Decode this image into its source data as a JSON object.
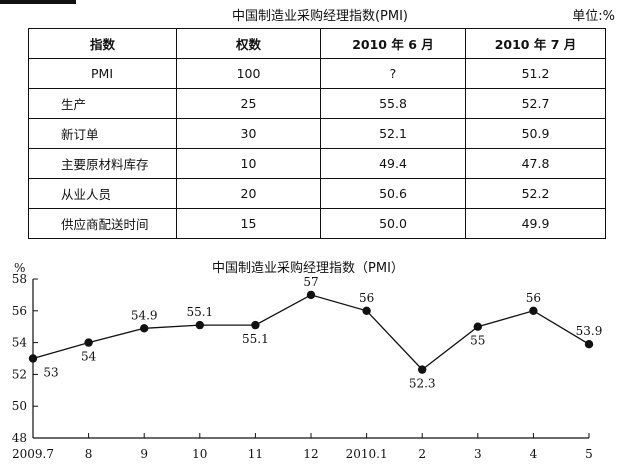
{
  "table": {
    "title": "中国制造业采购经理指数(PMI)",
    "unit": "单位:%",
    "headers": [
      "指数",
      "权数",
      "2010 年 6 月",
      "2010 年 7 月"
    ],
    "rows": [
      [
        "PMI",
        "100",
        "?",
        "51.2"
      ],
      [
        "生产",
        "25",
        "55.8",
        "52.7"
      ],
      [
        "新订单",
        "30",
        "52.1",
        "50.9"
      ],
      [
        "主要原材料库存",
        "10",
        "49.4",
        "47.8"
      ],
      [
        "从业人员",
        "20",
        "50.6",
        "52.2"
      ],
      [
        "供应商配送时间",
        "15",
        "50.0",
        "49.9"
      ]
    ]
  },
  "chart_data": {
    "type": "line",
    "title": "中国制造业采购经理指数（PMI）",
    "ylabel": "%",
    "xlabel": "",
    "categories": [
      "2009.7",
      "8",
      "9",
      "10",
      "11",
      "12",
      "2010.1",
      "2",
      "3",
      "4",
      "5"
    ],
    "values": [
      53,
      54,
      54.9,
      55.1,
      55.1,
      57,
      56,
      52.3,
      55,
      56,
      53.9
    ],
    "data_labels": [
      "53",
      "54",
      "54.9",
      "55.1",
      "55.1",
      "57",
      "56",
      "52.3",
      "55",
      "56",
      "53.9"
    ],
    "ylim": [
      48,
      58
    ],
    "yticks": [
      48,
      50,
      52,
      54,
      56,
      58
    ],
    "grid": false,
    "legend": "none",
    "line_color": "#111111"
  }
}
